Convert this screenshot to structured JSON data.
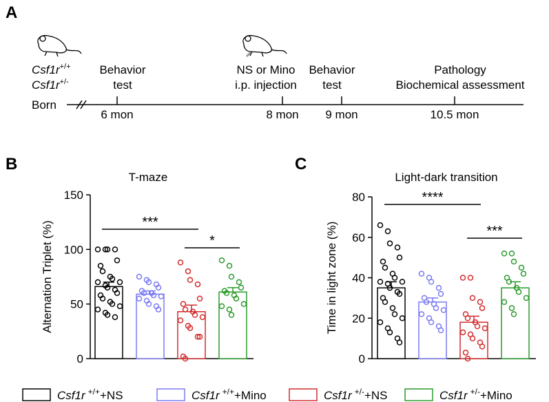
{
  "panel_labels": [
    "A",
    "B",
    "C"
  ],
  "timeline": {
    "gene": "Csf1r",
    "genotypes": [
      "+/+",
      "+/-"
    ],
    "start": "Born",
    "events": [
      {
        "lines": [
          "Behavior",
          "test"
        ],
        "time": "6 mon"
      },
      {
        "lines": [
          "NS or Mino",
          "i.p. injection"
        ],
        "time": "8 mon"
      },
      {
        "lines": [
          "Behavior",
          "test"
        ],
        "time": "9 mon"
      },
      {
        "lines": [
          "Pathology",
          "Biochemical assessment"
        ],
        "time": "10.5 mon"
      }
    ]
  },
  "legend": [
    {
      "gene": "Csf1r",
      "genotype": "+/+",
      "treatment": "+NS"
    },
    {
      "gene": "Csf1r",
      "genotype": "+/+",
      "treatment": "+Mino"
    },
    {
      "gene": "Csf1r",
      "genotype": "+/-",
      "treatment": "+NS"
    },
    {
      "gene": "Csf1r",
      "genotype": "+/-",
      "treatment": "+Mino"
    }
  ],
  "chart_data": [
    {
      "type": "bar",
      "title": "T-maze",
      "y_label": "Alternation Triplet (%)",
      "ylim": [
        0,
        150
      ],
      "yticks": [
        0,
        50,
        100,
        150
      ],
      "significance": [
        {
          "from": 0,
          "to": 2,
          "label": "***"
        },
        {
          "from": 2,
          "to": 3,
          "label": "*"
        }
      ],
      "series": [
        {
          "color": "#000000",
          "mean": 66,
          "error": 4,
          "values": [
            100,
            100,
            100,
            100,
            90,
            85,
            80,
            75,
            73,
            70,
            70,
            67,
            65,
            63,
            60,
            58,
            55,
            52,
            50,
            48,
            45,
            42,
            40,
            38
          ]
        },
        {
          "color": "#7a7af2",
          "mean": 59,
          "error": 3,
          "values": [
            75,
            72,
            70,
            68,
            65,
            62,
            60,
            60,
            58,
            57,
            55,
            53,
            50,
            48,
            45
          ]
        },
        {
          "color": "#d42a2a",
          "mean": 43,
          "error": 6,
          "values": [
            88,
            80,
            72,
            68,
            55,
            50,
            45,
            43,
            40,
            38,
            35,
            30,
            28,
            20,
            20,
            2,
            0
          ]
        },
        {
          "color": "#2a9a2a",
          "mean": 61,
          "error": 4,
          "values": [
            90,
            85,
            75,
            70,
            65,
            62,
            60,
            58,
            55,
            50,
            48,
            45,
            40
          ]
        }
      ]
    },
    {
      "type": "bar",
      "title": "Light-dark transition",
      "y_label": "Time in light zone (%)",
      "ylim": [
        0,
        80
      ],
      "yticks": [
        0,
        20,
        40,
        60,
        80
      ],
      "significance": [
        {
          "from": 0,
          "to": 2,
          "label": "****"
        },
        {
          "from": 2,
          "to": 3,
          "label": "***"
        }
      ],
      "series": [
        {
          "color": "#000000",
          "mean": 35,
          "error": 3,
          "values": [
            66,
            63,
            57,
            55,
            50,
            48,
            45,
            42,
            40,
            38,
            38,
            37,
            35,
            33,
            32,
            30,
            28,
            25,
            22,
            20,
            18,
            15,
            13,
            10,
            8
          ]
        },
        {
          "color": "#7a7af2",
          "mean": 28,
          "error": 2,
          "values": [
            42,
            40,
            38,
            35,
            32,
            30,
            28,
            27,
            25,
            24,
            22,
            20,
            18,
            16,
            14
          ]
        },
        {
          "color": "#d42a2a",
          "mean": 18,
          "error": 3,
          "values": [
            40,
            40,
            30,
            28,
            25,
            22,
            20,
            18,
            16,
            15,
            13,
            12,
            10,
            8,
            6,
            3,
            0
          ]
        },
        {
          "color": "#2a9a2a",
          "mean": 35,
          "error": 3,
          "values": [
            52,
            52,
            48,
            45,
            42,
            40,
            38,
            35,
            33,
            30,
            28,
            25,
            22
          ]
        }
      ]
    }
  ]
}
